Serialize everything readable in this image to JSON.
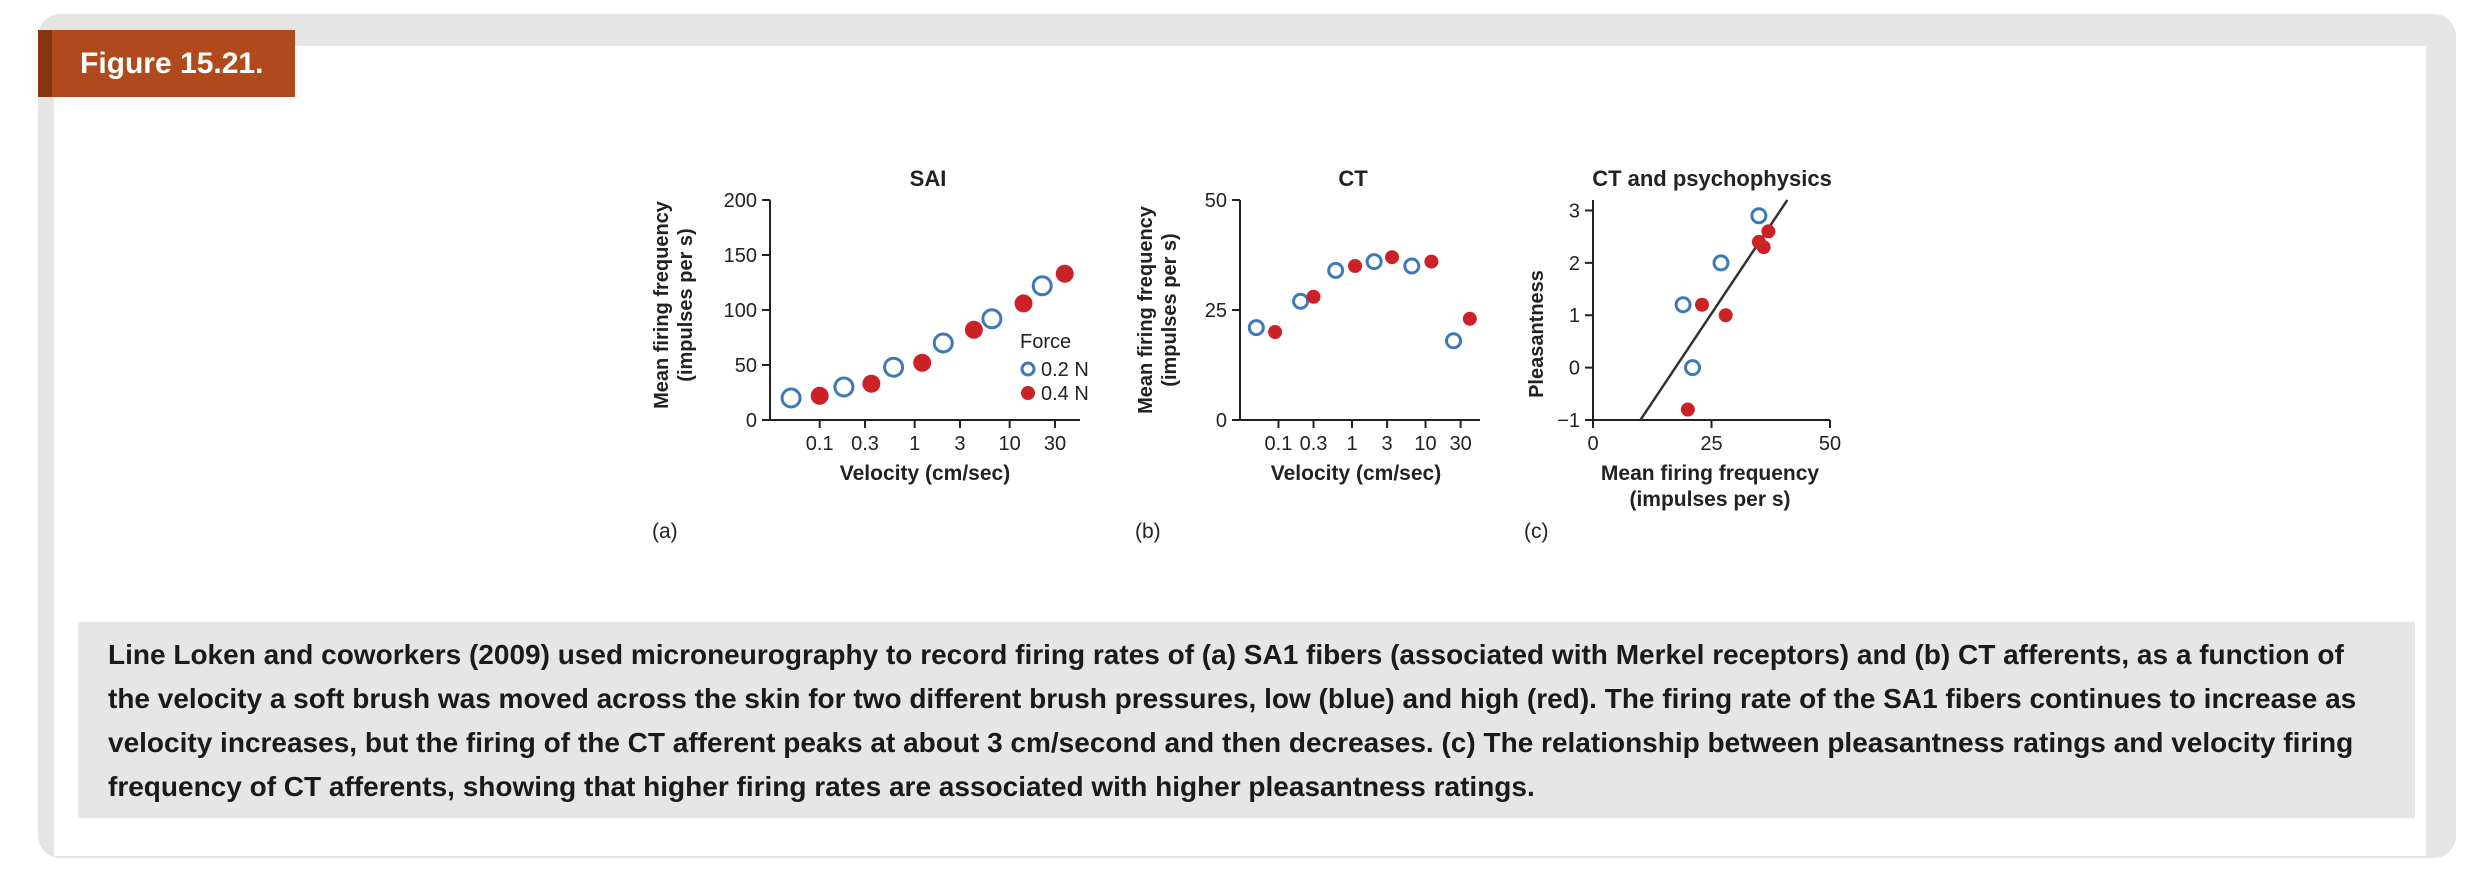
{
  "figure": {
    "label": "Figure 15.21.",
    "caption": "Line Loken and coworkers (2009) used microneurography to record firing rates of (a) SA1 fibers (associated with Merkel receptors) and (b) CT afferents, as a function of the velocity a soft brush was moved across the skin for two different brush pressures, low (blue) and high (red). The firing rate of the SA1 fibers continues to increase as velocity increases, but the firing of the CT afferent peaks at about 3 cm/second and then decreases. (c) The relationship between pleasantness ratings and velocity firing frequency of CT afferents, showing that higher firing rates are associated with higher pleasantness ratings."
  },
  "colors": {
    "blue": "#3d78b8",
    "red": "#cc2127",
    "badge": "#b04a1c"
  },
  "chart_data": [
    {
      "type": "scatter",
      "panel_label": "(a)",
      "title": "SAI",
      "xlabel": "Velocity (cm/sec)",
      "ylabel": "Mean firing frequency",
      "ylabel2": "(impulses per s)",
      "xscale": "log",
      "xticks": [
        "0.1",
        "0.3",
        "1",
        "3",
        "10",
        "30"
      ],
      "xlim": [
        0.03,
        55
      ],
      "ylim": [
        0,
        200
      ],
      "yticks": [
        "0",
        "50",
        "100",
        "150",
        "200"
      ],
      "legend": {
        "title": "Force",
        "position": "right",
        "entries": [
          "0.2 N",
          "0.4 N"
        ]
      },
      "series": [
        {
          "name": "0.2 N",
          "x": [
            0.05,
            0.18,
            0.6,
            2.0,
            6.5,
            22
          ],
          "y": [
            20,
            30,
            48,
            70,
            92,
            122
          ]
        },
        {
          "name": "0.4 N",
          "x": [
            0.1,
            0.35,
            1.2,
            4.2,
            14,
            38
          ],
          "y": [
            22,
            33,
            52,
            82,
            106,
            133
          ]
        }
      ]
    },
    {
      "type": "scatter",
      "panel_label": "(b)",
      "title": "CT",
      "xlabel": "Velocity (cm/sec)",
      "ylabel": "Mean firing frequency",
      "ylabel2": "(impulses per s)",
      "xscale": "log",
      "xticks": [
        "0.1",
        "0.3",
        "1",
        "3",
        "10",
        "30"
      ],
      "xlim": [
        0.03,
        55
      ],
      "ylim": [
        0,
        50
      ],
      "yticks": [
        "0",
        "25",
        "50"
      ],
      "series": [
        {
          "name": "0.2 N",
          "x": [
            0.05,
            0.2,
            0.6,
            2.0,
            6.5,
            24
          ],
          "y": [
            21,
            27,
            34,
            36,
            35,
            18
          ]
        },
        {
          "name": "0.4 N",
          "x": [
            0.09,
            0.3,
            1.1,
            3.5,
            12,
            40
          ],
          "y": [
            20,
            28,
            35,
            37,
            36,
            23
          ]
        }
      ]
    },
    {
      "type": "scatter",
      "panel_label": "(c)",
      "title": "CT and psychophysics",
      "xlabel": "Mean firing frequency",
      "xlabel2": "(impulses per s)",
      "ylabel": "Pleasantness",
      "xlim": [
        0,
        50
      ],
      "ylim": [
        -1,
        3.2
      ],
      "xticks": [
        "0",
        "25",
        "50"
      ],
      "yticks": [
        "−1",
        "0",
        "1",
        "2",
        "3"
      ],
      "fit_line": {
        "x": [
          10,
          41
        ],
        "y": [
          -1,
          3.2
        ]
      },
      "series": [
        {
          "name": "0.2 N",
          "x": [
            19,
            21,
            27,
            35
          ],
          "y": [
            1.2,
            0.0,
            2.0,
            2.9
          ]
        },
        {
          "name": "0.4 N",
          "x": [
            20,
            23,
            28,
            35,
            36,
            37
          ],
          "y": [
            -0.8,
            1.2,
            1.0,
            2.4,
            2.3,
            2.6
          ]
        }
      ]
    }
  ]
}
